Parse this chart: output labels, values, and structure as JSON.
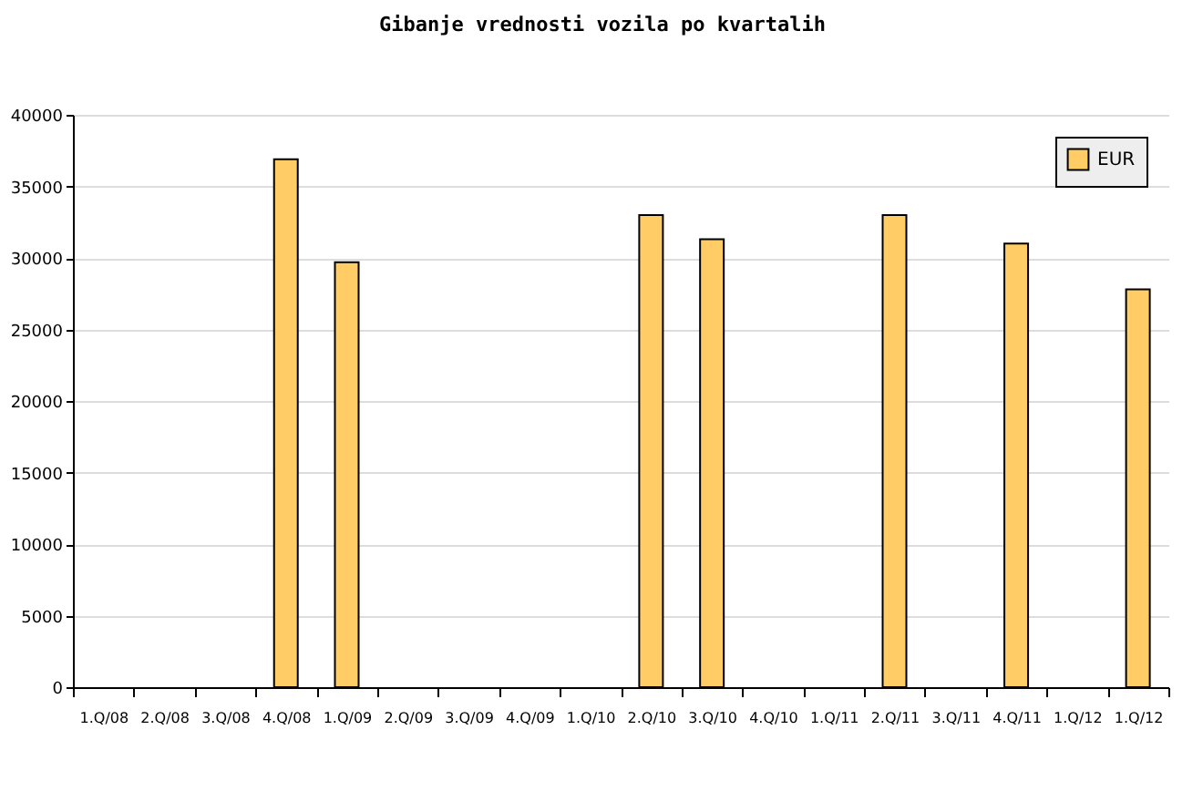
{
  "chart_data": {
    "type": "bar",
    "title": "Gibanje vrednosti vozila po kvartalih",
    "categories": [
      "1.Q/08",
      "2.Q/08",
      "3.Q/08",
      "4.Q/08",
      "1.Q/09",
      "2.Q/09",
      "3.Q/09",
      "4.Q/09",
      "1.Q/10",
      "2.Q/10",
      "3.Q/10",
      "4.Q/10",
      "1.Q/11",
      "2.Q/11",
      "3.Q/11",
      "4.Q/11",
      "1.Q/12",
      "1.Q/12"
    ],
    "series": [
      {
        "name": "EUR",
        "color": "#ffcc66",
        "values": [
          null,
          null,
          null,
          36900,
          29700,
          null,
          null,
          null,
          null,
          33000,
          31300,
          null,
          null,
          33000,
          null,
          31000,
          null,
          27800
        ]
      }
    ],
    "ylim": [
      0,
      40000
    ],
    "yticks": [
      0,
      5000,
      10000,
      15000,
      20000,
      25000,
      30000,
      35000,
      40000
    ],
    "grid": "y",
    "legend": "top right"
  }
}
